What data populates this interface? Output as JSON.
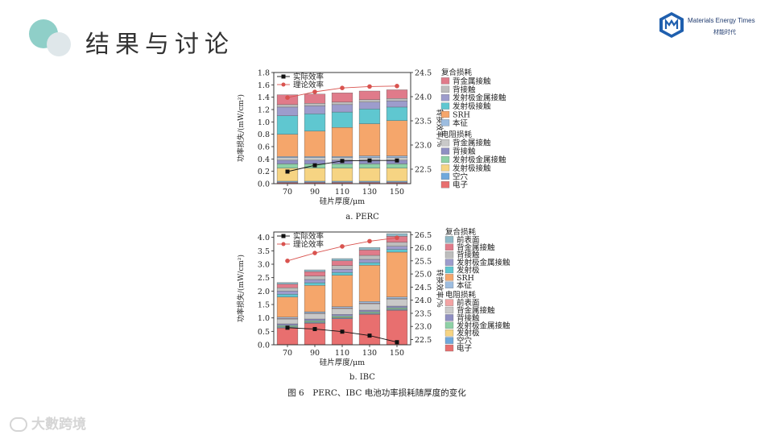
{
  "slide": {
    "title": "结果与讨论",
    "logo_en": "Materials Energy Times",
    "logo_cn": "材能时代",
    "watermark": "大數跨境",
    "caption": "图 6　PERC、IBC 电池功率损耗随厚度的变化"
  },
  "colors": {
    "ok_teal": "#8fcfc8"
  },
  "chart_data": [
    {
      "type": "bar",
      "stacked": true,
      "subcaption": "a. PERC",
      "categories": [
        "70",
        "90",
        "110",
        "130",
        "150"
      ],
      "xlabel": "硅片厚度/μm",
      "ylabel": "功率损失/(mW/cm²)",
      "ylim": [
        0,
        1.8
      ],
      "yticks": [
        "0.0",
        "0.2",
        "0.4",
        "0.6",
        "0.8",
        "1.0",
        "1.2",
        "1.4",
        "1.6",
        "1.8"
      ],
      "y2label": "转换效率/%",
      "y2lim": [
        22.2,
        24.5
      ],
      "y2ticks": [
        "22.5",
        "23.0",
        "23.5",
        "24.0",
        "24.5"
      ],
      "legend_position": "right",
      "lines": [
        {
          "name": "实际效率",
          "color": "#111111",
          "marker": "square",
          "values": [
            22.45,
            22.58,
            22.67,
            22.68,
            22.68
          ]
        },
        {
          "name": "理论效率",
          "color": "#d9534f",
          "marker": "circle",
          "values": [
            23.98,
            24.1,
            24.18,
            24.21,
            24.22
          ]
        }
      ],
      "legend_groups": [
        {
          "title": "复合损耗",
          "items": [
            {
              "name": "背金属接触",
              "color": "#e07b8a"
            },
            {
              "name": "背接触",
              "color": "#bdbdbd"
            },
            {
              "name": "发射极金属接触",
              "color": "#9d9ccc"
            },
            {
              "name": "发射极接触",
              "color": "#5fc7d0"
            },
            {
              "name": "SRH",
              "color": "#f5a66b"
            },
            {
              "name": "本征",
              "color": "#9dbde0"
            }
          ]
        },
        {
          "title": "电阻损耗",
          "items": [
            {
              "name": "背金属接触",
              "color": "#c9c9c9"
            },
            {
              "name": "背接触",
              "color": "#8f8fc2"
            },
            {
              "name": "发射极金属接触",
              "color": "#8ed1a6"
            },
            {
              "name": "发射极接触",
              "color": "#f6d483"
            },
            {
              "name": "空穴",
              "color": "#6fa8dc"
            },
            {
              "name": "电子",
              "color": "#e86f6f"
            }
          ]
        }
      ],
      "series": [
        {
          "name": "电子",
          "color": "#e86f6f",
          "values": [
            0.02,
            0.02,
            0.02,
            0.02,
            0.02
          ]
        },
        {
          "name": "空穴",
          "color": "#6fa8dc",
          "values": [
            0.02,
            0.02,
            0.02,
            0.02,
            0.02
          ]
        },
        {
          "name": "发射极接触",
          "color": "#f6d483",
          "values": [
            0.21,
            0.21,
            0.21,
            0.21,
            0.21
          ]
        },
        {
          "name": "发射极金属接触",
          "color": "#8ed1a6",
          "values": [
            0.07,
            0.07,
            0.07,
            0.07,
            0.07
          ]
        },
        {
          "name": "背接触",
          "color": "#8f8fc2",
          "values": [
            0.06,
            0.06,
            0.06,
            0.06,
            0.06
          ]
        },
        {
          "name": "背金属接触",
          "color": "#c9c9c9",
          "values": [
            0.04,
            0.04,
            0.04,
            0.04,
            0.04
          ]
        },
        {
          "name": "本征",
          "color": "#9dbde0",
          "values": [
            0.02,
            0.02,
            0.02,
            0.03,
            0.03
          ]
        },
        {
          "name": "SRH",
          "color": "#f5a66b",
          "values": [
            0.36,
            0.41,
            0.47,
            0.52,
            0.57
          ]
        },
        {
          "name": "发射极接触",
          "color": "#5fc7d0",
          "values": [
            0.3,
            0.28,
            0.25,
            0.24,
            0.22
          ]
        },
        {
          "name": "发射极金属接触",
          "color": "#9d9ccc",
          "values": [
            0.14,
            0.13,
            0.12,
            0.11,
            0.1
          ]
        },
        {
          "name": "背接触",
          "color": "#bdbdbd",
          "values": [
            0.04,
            0.04,
            0.04,
            0.04,
            0.04
          ]
        },
        {
          "name": "背金属接触",
          "color": "#e07b8a",
          "values": [
            0.16,
            0.15,
            0.15,
            0.14,
            0.14
          ]
        }
      ]
    },
    {
      "type": "bar",
      "stacked": true,
      "subcaption": "b. IBC",
      "categories": [
        "70",
        "90",
        "110",
        "130",
        "150"
      ],
      "xlabel": "硅片厚度/μm",
      "ylabel": "功率损失/(mW/cm²)",
      "ylim": [
        0,
        4.2
      ],
      "yticks": [
        "0.0",
        "0.5",
        "1.0",
        "1.5",
        "2.0",
        "2.5",
        "3.0",
        "3.5",
        "4.0"
      ],
      "y2label": "转换效率/%",
      "y2lim": [
        22.3,
        26.6
      ],
      "y2ticks": [
        "22.5",
        "23.0",
        "23.5",
        "24.0",
        "24.5",
        "25.0",
        "25.5",
        "26.0",
        "26.5"
      ],
      "legend_position": "right",
      "lines": [
        {
          "name": "实际效率",
          "color": "#111111",
          "marker": "square",
          "values": [
            22.95,
            22.9,
            22.8,
            22.65,
            22.4
          ]
        },
        {
          "name": "理论效率",
          "color": "#d9534f",
          "marker": "circle",
          "values": [
            25.5,
            25.8,
            26.05,
            26.25,
            26.38
          ]
        }
      ],
      "legend_groups": [
        {
          "title": "复合损耗",
          "items": [
            {
              "name": "前表面",
              "color": "#8fb9c7"
            },
            {
              "name": "背金属接触",
              "color": "#e07b8a"
            },
            {
              "name": "背接触",
              "color": "#bdbdbd"
            },
            {
              "name": "发射极金属接触",
              "color": "#9d9ccc"
            },
            {
              "name": "发射极",
              "color": "#5fc7d0"
            },
            {
              "name": "SRH",
              "color": "#f5a66b"
            },
            {
              "name": "本征",
              "color": "#9dbde0"
            }
          ]
        },
        {
          "title": "电阻损耗",
          "items": [
            {
              "name": "前表面",
              "color": "#f3a3a3"
            },
            {
              "name": "背金属接触",
              "color": "#c9c9c9"
            },
            {
              "name": "背接触",
              "color": "#8f8fc2"
            },
            {
              "name": "发射极金属接触",
              "color": "#8ed1a6"
            },
            {
              "name": "发射极",
              "color": "#f6d483"
            },
            {
              "name": "空穴",
              "color": "#6fa8dc"
            },
            {
              "name": "电子",
              "color": "#e86f6f"
            }
          ]
        }
      ],
      "series": [
        {
          "name": "电子",
          "color": "#e86f6f",
          "values": [
            0.62,
            0.8,
            0.97,
            1.13,
            1.28
          ]
        },
        {
          "name": "空穴",
          "color": "#6fa8dc",
          "values": [
            0.03,
            0.03,
            0.03,
            0.03,
            0.03
          ]
        },
        {
          "name": "发射极",
          "color": "#f6d483",
          "values": [
            0.02,
            0.02,
            0.02,
            0.02,
            0.02
          ]
        },
        {
          "name": "发射极金属接触",
          "color": "#8ed1a6",
          "values": [
            0.05,
            0.05,
            0.05,
            0.05,
            0.05
          ]
        },
        {
          "name": "背接触",
          "color": "#8f8fc2",
          "values": [
            0.06,
            0.06,
            0.06,
            0.06,
            0.06
          ]
        },
        {
          "name": "背金属接触",
          "color": "#c9c9c9",
          "values": [
            0.18,
            0.2,
            0.22,
            0.24,
            0.26
          ]
        },
        {
          "name": "前表面",
          "color": "#f3a3a3",
          "values": [
            0.02,
            0.02,
            0.02,
            0.02,
            0.02
          ]
        },
        {
          "name": "本征",
          "color": "#9dbde0",
          "values": [
            0.05,
            0.05,
            0.05,
            0.06,
            0.06
          ]
        },
        {
          "name": "SRH",
          "color": "#f5a66b",
          "values": [
            0.75,
            0.98,
            1.17,
            1.35,
            1.67
          ]
        },
        {
          "name": "发射极",
          "color": "#5fc7d0",
          "values": [
            0.1,
            0.1,
            0.1,
            0.1,
            0.1
          ]
        },
        {
          "name": "发射极金属接触",
          "color": "#9d9ccc",
          "values": [
            0.12,
            0.12,
            0.12,
            0.12,
            0.12
          ]
        },
        {
          "name": "背接触",
          "color": "#bdbdbd",
          "values": [
            0.12,
            0.13,
            0.14,
            0.15,
            0.15
          ]
        },
        {
          "name": "背金属接触",
          "color": "#e07b8a",
          "values": [
            0.14,
            0.16,
            0.18,
            0.2,
            0.22
          ]
        },
        {
          "name": "前表面",
          "color": "#8fb9c7",
          "values": [
            0.06,
            0.07,
            0.08,
            0.09,
            0.1
          ]
        }
      ]
    }
  ]
}
